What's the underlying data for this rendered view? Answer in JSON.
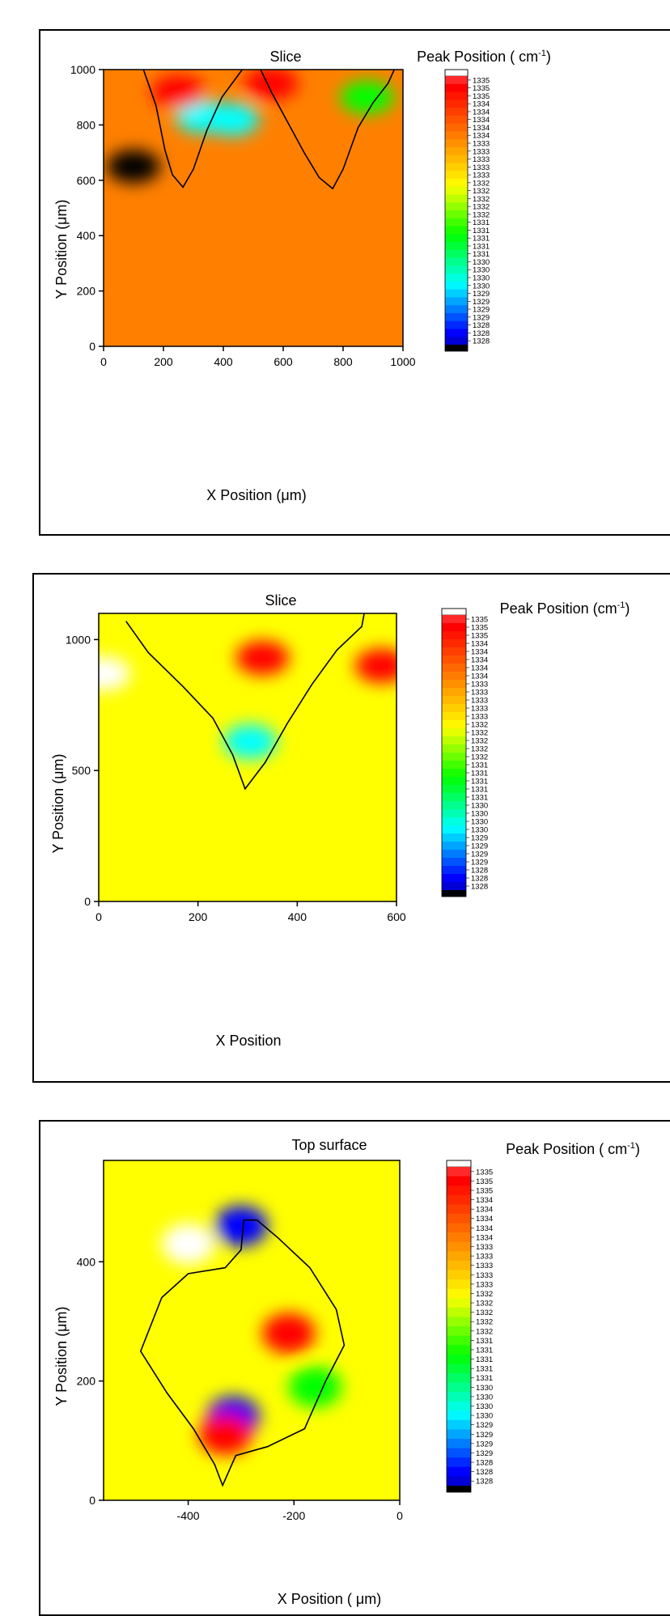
{
  "panels": [
    {
      "title": "Slice",
      "xlabel": "X Position (μm)",
      "ylabel": "Y Position (μm)",
      "colorbar_title": "Peak Position ( cm",
      "colorbar_sup": "-1",
      "colorbar_close": ")"
    },
    {
      "title": "Slice",
      "xlabel": "X Position",
      "ylabel": "Y Position (μm)",
      "colorbar_title": "Peak Position (cm",
      "colorbar_sup": "-1",
      "colorbar_close": ")"
    },
    {
      "title": "Top surface",
      "xlabel": "X Position ( μm)",
      "ylabel": "Y Position (μm)",
      "colorbar_title": "Peak Position ( cm",
      "colorbar_sup": "-1",
      "colorbar_close": ")"
    }
  ],
  "colorbar_labels": [
    "1335",
    "1335",
    "1335",
    "1334",
    "1334",
    "1334",
    "1334",
    "1334",
    "1333",
    "1333",
    "1333",
    "1333",
    "1333",
    "1332",
    "1332",
    "1332",
    "1332",
    "1332",
    "1331",
    "1331",
    "1331",
    "1331",
    "1331",
    "1330",
    "1330",
    "1330",
    "1330",
    "1329",
    "1329",
    "1329",
    "1329",
    "1328",
    "1328",
    "1328"
  ],
  "colors": {
    "colorbar_stops": [
      "#000000",
      "#0000ff",
      "#00ffff",
      "#00ff00",
      "#ffff00",
      "#ff8000",
      "#ff0000",
      "#ffffff"
    ],
    "contour": "#000000"
  },
  "chart_data": [
    {
      "type": "heatmap",
      "title": "Slice",
      "xlabel": "X Position (μm)",
      "ylabel": "Y Position (μm)",
      "xlim": [
        0,
        1000
      ],
      "ylim": [
        0,
        1000
      ],
      "xticks": [
        0,
        200,
        400,
        600,
        800,
        1000
      ],
      "yticks": [
        0,
        200,
        400,
        600,
        800,
        1000
      ],
      "colorbar": {
        "label": "Peak Position ( cm-1)",
        "min": 1328,
        "max": 1335
      },
      "background_value": 1333,
      "regions": [
        {
          "x": 100,
          "y": 650,
          "value": 1328
        },
        {
          "x": 330,
          "y": 830,
          "value": 1330
        },
        {
          "x": 430,
          "y": 820,
          "value": 1330
        },
        {
          "x": 560,
          "y": 950,
          "value": 1334
        },
        {
          "x": 880,
          "y": 900,
          "value": 1331
        },
        {
          "x": 250,
          "y": 920,
          "value": 1334
        }
      ],
      "contour": [
        [
          130,
          1010
        ],
        [
          175,
          870
        ],
        [
          205,
          710
        ],
        [
          230,
          620
        ],
        [
          265,
          575
        ],
        [
          300,
          640
        ],
        [
          345,
          780
        ],
        [
          395,
          900
        ],
        [
          470,
          1010
        ],
        [
          520,
          1010
        ],
        [
          560,
          920
        ],
        [
          610,
          820
        ],
        [
          670,
          700
        ],
        [
          720,
          610
        ],
        [
          765,
          570
        ],
        [
          800,
          640
        ],
        [
          850,
          790
        ],
        [
          900,
          880
        ],
        [
          950,
          950
        ],
        [
          975,
          1010
        ]
      ]
    },
    {
      "type": "heatmap",
      "title": "Slice",
      "xlabel": "X Position",
      "ylabel": "Y Position (μm)",
      "xlim": [
        0,
        600
      ],
      "ylim": [
        0,
        1100
      ],
      "xticks": [
        0,
        200,
        400,
        600
      ],
      "yticks": [
        0,
        500,
        1000
      ],
      "colorbar": {
        "label": "Peak Position (cm-1)",
        "min": 1328,
        "max": 1335
      },
      "background_value": 1332,
      "regions": [
        {
          "x": 10,
          "y": 870,
          "value": 1335
        },
        {
          "x": 305,
          "y": 610,
          "value": 1330
        },
        {
          "x": 330,
          "y": 930,
          "value": 1334
        },
        {
          "x": 570,
          "y": 900,
          "value": 1334
        }
      ],
      "contour": [
        [
          55,
          1070
        ],
        [
          100,
          950
        ],
        [
          170,
          820
        ],
        [
          230,
          700
        ],
        [
          270,
          560
        ],
        [
          295,
          430
        ],
        [
          335,
          530
        ],
        [
          380,
          680
        ],
        [
          430,
          830
        ],
        [
          480,
          960
        ],
        [
          530,
          1050
        ],
        [
          535,
          1100
        ]
      ]
    },
    {
      "type": "heatmap",
      "title": "Top surface",
      "xlabel": "X Position ( μm)",
      "ylabel": "Y Position (μm)",
      "xlim": [
        -560,
        0
      ],
      "ylim": [
        0,
        570
      ],
      "xticks": [
        -400,
        -200,
        0
      ],
      "yticks": [
        0,
        200,
        400
      ],
      "colorbar": {
        "label": "Peak Position ( cm-1)",
        "min": 1328,
        "max": 1335
      },
      "background_value": 1332,
      "regions": [
        {
          "x": -400,
          "y": 430,
          "value": 1335
        },
        {
          "x": -300,
          "y": 460,
          "value": 1329
        },
        {
          "x": -210,
          "y": 280,
          "value": 1334
        },
        {
          "x": -315,
          "y": 140,
          "value": 1329
        },
        {
          "x": -330,
          "y": 110,
          "value": 1334
        },
        {
          "x": -160,
          "y": 190,
          "value": 1331
        }
      ],
      "contour": [
        [
          -295,
          470
        ],
        [
          -300,
          420
        ],
        [
          -330,
          390
        ],
        [
          -400,
          380
        ],
        [
          -450,
          340
        ],
        [
          -490,
          250
        ],
        [
          -440,
          180
        ],
        [
          -390,
          120
        ],
        [
          -350,
          60
        ],
        [
          -335,
          25
        ],
        [
          -310,
          75
        ],
        [
          -250,
          90
        ],
        [
          -180,
          120
        ],
        [
          -140,
          200
        ],
        [
          -105,
          260
        ],
        [
          -120,
          320
        ],
        [
          -170,
          390
        ],
        [
          -230,
          440
        ],
        [
          -270,
          470
        ],
        [
          -295,
          470
        ]
      ]
    }
  ]
}
